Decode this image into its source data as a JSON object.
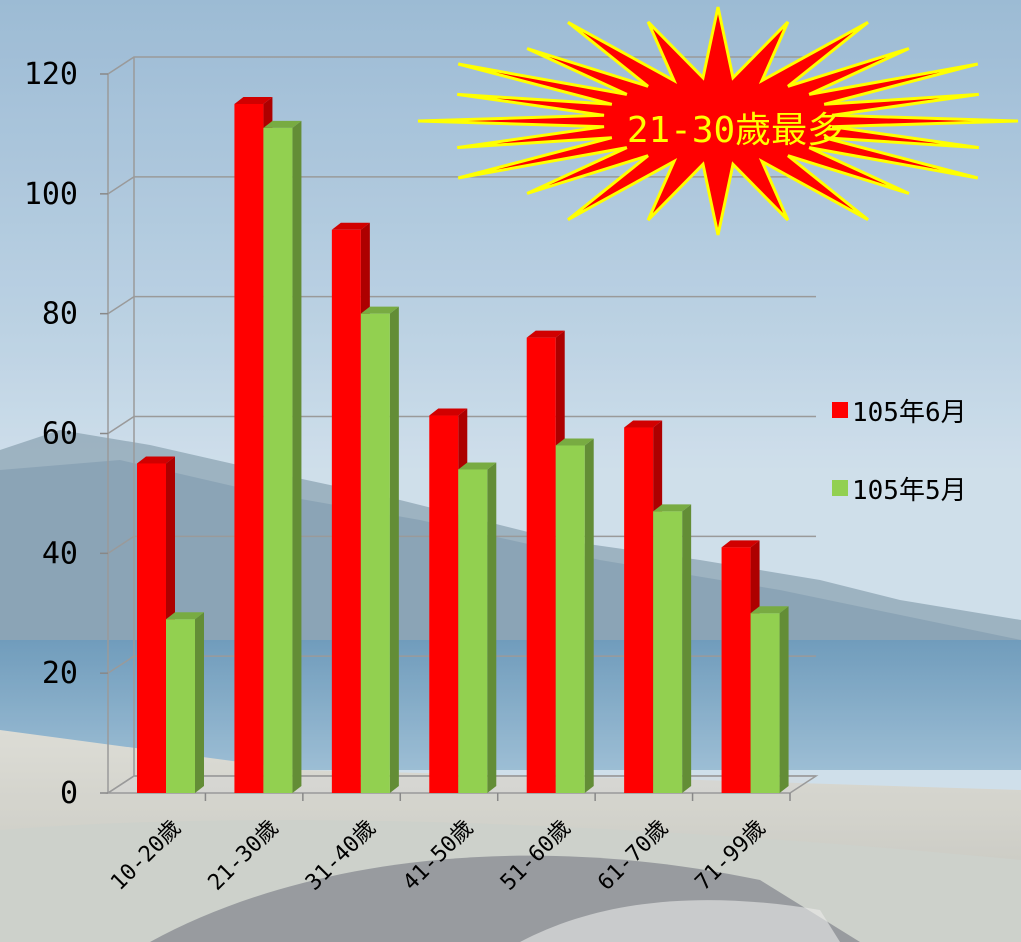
{
  "chart_data": {
    "type": "bar",
    "categories": [
      "10-20歲",
      "21-30歲",
      "31-40歲",
      "41-50歲",
      "51-60歲",
      "61-70歲",
      "71-99歲"
    ],
    "series": [
      {
        "name": "105年6月",
        "color": "#ff0000",
        "values": [
          55,
          115,
          94,
          63,
          76,
          61,
          41
        ]
      },
      {
        "name": "105年5月",
        "color": "#92d050",
        "values": [
          29,
          111,
          80,
          54,
          58,
          47,
          30
        ]
      }
    ],
    "yticks": [
      "0",
      "20",
      "40",
      "60",
      "80",
      "100",
      "120"
    ],
    "ylim": [
      0,
      120
    ],
    "grid": true,
    "legend": "right",
    "annotation": "21-30歲最多"
  }
}
